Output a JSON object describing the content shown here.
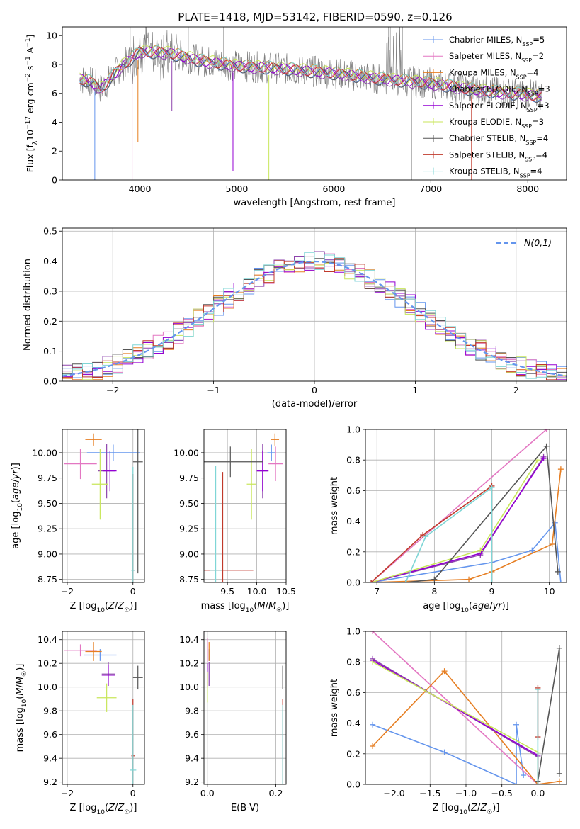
{
  "figure": {
    "title": "PLATE=1418, MJD=53142, FIBERID=0590, z=0.126"
  },
  "colors": {
    "series": [
      "#6495ED",
      "#E377C2",
      "#E67E22",
      "#8E44AD",
      "#9400D3",
      "#C8E65A",
      "#555555",
      "#C0392B",
      "#7FD6D6"
    ],
    "normal": "#6495ED",
    "grid": "#b0b0b0"
  },
  "chart_data": [
    {
      "type": "line",
      "xlabel": "wavelength [Angstrom, rest frame]",
      "ylabel": "Flux [f_λ 10^-17 erg cm^-2 s^-1 A^-1]",
      "xlim": [
        3200,
        8400
      ],
      "ylim": [
        0,
        10.6
      ],
      "xticks": [
        4000,
        5000,
        6000,
        7000,
        8000
      ],
      "yticks": [
        0,
        2,
        4,
        6,
        8,
        10
      ],
      "grid": false,
      "legend": "top-right",
      "series": [
        {
          "name": "Chabrier MILES, N_SSP=5"
        },
        {
          "name": "Salpeter MILES, N_SSP=2"
        },
        {
          "name": "Kroupa MILES, N_SSP=4"
        },
        {
          "name": "Chabrier ELODIE, N_SSP=3"
        },
        {
          "name": "Salpeter ELODIE, N_SSP=3"
        },
        {
          "name": "Kroupa ELODIE, N_SSP=3"
        },
        {
          "name": "Chabrier STELIB, N_SSP=4"
        },
        {
          "name": "Salpeter STELIB, N_SSP=4"
        },
        {
          "name": "Kroupa STELIB, N_SSP=4"
        }
      ],
      "continuum_x": [
        3380,
        3500,
        3600,
        3800,
        4000,
        4300,
        4600,
        5000,
        5500,
        6000,
        6500,
        7000,
        7500,
        8000,
        8150
      ],
      "continuum_y": [
        7.0,
        6.8,
        6.3,
        7.8,
        8.9,
        8.8,
        8.3,
        7.9,
        7.7,
        7.4,
        7.0,
        6.7,
        6.2,
        5.9,
        5.8
      ],
      "dips": [
        {
          "x": 3535,
          "y": 0.0
        },
        {
          "x": 3920,
          "y": 0.0
        },
        {
          "x": 3980,
          "y": 2.6
        },
        {
          "x": 4330,
          "y": 4.8
        },
        {
          "x": 4960,
          "y": 0.6
        },
        {
          "x": 5330,
          "y": 0.0
        },
        {
          "x": 6800,
          "y": 0.0
        },
        {
          "x": 7420,
          "y": 0.0
        }
      ]
    },
    {
      "type": "line",
      "xlabel": "(data-model)/error",
      "ylabel": "Normed distribution",
      "xlim": [
        -2.5,
        2.5
      ],
      "ylim": [
        0,
        0.51
      ],
      "xticks": [
        -2,
        -1,
        0,
        1,
        2
      ],
      "yticks": [
        0.0,
        0.1,
        0.2,
        0.3,
        0.4,
        0.5
      ],
      "grid": true,
      "legend": "top-right",
      "legend_label": "N(0,1)",
      "bin_width": 0.1
    },
    {
      "type": "scatter",
      "xlabel": "Z [log10(Z/Z_sun)]",
      "ylabel": "age [log10(age/yr)]",
      "xlim": [
        -2.15,
        0.35
      ],
      "ylim": [
        8.72,
        10.23
      ],
      "xticks": [
        -2,
        0
      ],
      "yticks": [
        8.75,
        9.0,
        9.25,
        9.5,
        9.75,
        10.0
      ],
      "grid": true,
      "points": [
        {
          "x": -0.6,
          "y": 10.0,
          "xerr": 0.8,
          "yerr": 0.08
        },
        {
          "x": -1.6,
          "y": 9.89,
          "xerr": 0.5,
          "yerr": 0.15
        },
        {
          "x": -1.2,
          "y": 10.13,
          "xerr": 0.25,
          "yerr": 0.06
        },
        {
          "x": -0.8,
          "y": 9.82,
          "xerr": 0.25,
          "yerr": 0.27
        },
        {
          "x": -0.7,
          "y": 9.82,
          "xerr": 0.2,
          "yerr": 0.2
        },
        {
          "x": -1.0,
          "y": 9.69,
          "xerr": 0.25,
          "yerr": 0.35
        },
        {
          "x": 0.15,
          "y": 9.91,
          "xerr": 0.15,
          "yerr": 1.1
        },
        {
          "x": 0.0,
          "y": 8.84,
          "xerr": 0.05,
          "yerr": 0.95
        },
        {
          "x": 0.0,
          "y": 8.84,
          "xerr": 0.05,
          "yerr": 1.02
        }
      ]
    },
    {
      "type": "scatter",
      "xlabel": "mass [log10(M/M_sun)]",
      "ylabel": "",
      "xlim": [
        9.1,
        10.5
      ],
      "ylim": [
        8.72,
        10.23
      ],
      "xticks": [
        9.5,
        10.0,
        10.5
      ],
      "yticks": [
        8.75,
        9.0,
        9.25,
        9.5,
        9.75,
        10.0
      ],
      "grid": true,
      "points": [
        {
          "x": 10.25,
          "y": 10.0,
          "xerr": 0.07,
          "yerr": 0.08
        },
        {
          "x": 10.32,
          "y": 9.89,
          "xerr": 0.12,
          "yerr": 0.17
        },
        {
          "x": 10.31,
          "y": 10.13,
          "xerr": 0.07,
          "yerr": 0.06
        },
        {
          "x": 10.1,
          "y": 9.82,
          "xerr": 0.1,
          "yerr": 0.27
        },
        {
          "x": 10.1,
          "y": 9.82,
          "xerr": 0.1,
          "yerr": 0.2
        },
        {
          "x": 9.91,
          "y": 9.69,
          "xerr": 0.08,
          "yerr": 0.35
        },
        {
          "x": 9.55,
          "y": 9.91,
          "xerr": 0.55,
          "yerr": 0.15
        },
        {
          "x": 9.42,
          "y": 8.84,
          "xerr": 0.52,
          "yerr": 0.97
        },
        {
          "x": 9.3,
          "y": 8.84,
          "xerr": 0.1,
          "yerr": 1.03
        }
      ]
    },
    {
      "type": "line",
      "xlabel": "age [log10(age/yr)]",
      "ylabel": "mass weight",
      "xlim": [
        6.8,
        10.3
      ],
      "ylim": [
        0,
        1.0
      ],
      "xticks": [
        7,
        8,
        9,
        10
      ],
      "yticks": [
        0.0,
        0.2,
        0.4,
        0.6,
        0.8,
        1.0
      ],
      "grid": true,
      "series": [
        {
          "x": [
            6.9,
            9.0,
            9.7,
            10.1,
            10.2
          ],
          "y": [
            0.0,
            0.13,
            0.21,
            0.39,
            0.0
          ]
        },
        {
          "x": [
            6.9,
            9.95
          ],
          "y": [
            0.0,
            1.0
          ]
        },
        {
          "x": [
            6.9,
            8.6,
            9.0,
            10.05,
            10.2
          ],
          "y": [
            0.0,
            0.02,
            0.07,
            0.25,
            0.74
          ]
        },
        {
          "x": [
            6.9,
            8.8,
            9.9
          ],
          "y": [
            0.0,
            0.18,
            0.82
          ]
        },
        {
          "x": [
            6.9,
            8.8,
            9.9
          ],
          "y": [
            0.0,
            0.19,
            0.81
          ]
        },
        {
          "x": [
            6.9,
            8.8,
            9.8
          ],
          "y": [
            0.0,
            0.21,
            0.8
          ]
        },
        {
          "x": [
            7.5,
            8.0,
            9.95,
            10.15
          ],
          "y": [
            0.0,
            0.02,
            0.89,
            0.07
          ]
        },
        {
          "x": [
            6.9,
            7.8,
            9.0,
            9.0
          ],
          "y": [
            0.0,
            0.31,
            0.63,
            0.0
          ]
        },
        {
          "x": [
            7.5,
            7.85,
            9.0,
            9.0
          ],
          "y": [
            0.0,
            0.3,
            0.62,
            0.0
          ]
        }
      ]
    },
    {
      "type": "scatter",
      "xlabel": "Z [log10(Z/Z_sun)]",
      "ylabel": "mass [log10(M/M_sun)]",
      "xlim": [
        -2.15,
        0.35
      ],
      "ylim": [
        9.18,
        10.47
      ],
      "xticks": [
        -2,
        0
      ],
      "yticks": [
        9.2,
        9.4,
        9.6,
        9.8,
        10.0,
        10.2,
        10.4
      ],
      "grid": true,
      "points": [
        {
          "x": -1.0,
          "y": 10.27,
          "xerr": 0.5,
          "yerr": 0.05
        },
        {
          "x": -1.6,
          "y": 10.31,
          "xerr": 0.5,
          "yerr": 0.05
        },
        {
          "x": -1.2,
          "y": 10.3,
          "xerr": 0.25,
          "yerr": 0.08
        },
        {
          "x": -0.75,
          "y": 10.11,
          "xerr": 0.2,
          "yerr": 0.1
        },
        {
          "x": -0.75,
          "y": 10.1,
          "xerr": 0.2,
          "yerr": 0.09
        },
        {
          "x": -0.8,
          "y": 9.91,
          "xerr": 0.3,
          "yerr": 0.12
        },
        {
          "x": 0.15,
          "y": 10.08,
          "xerr": 0.15,
          "yerr": 0.1
        },
        {
          "x": 0.0,
          "y": 9.42,
          "xerr": 0.05,
          "yerr": 0.48
        },
        {
          "x": 0.0,
          "y": 9.3,
          "xerr": 0.1,
          "yerr": 0.55
        }
      ]
    },
    {
      "type": "scatter",
      "xlabel": "E(B-V)",
      "ylabel": "",
      "xlim": [
        -0.01,
        0.23
      ],
      "ylim": [
        9.18,
        10.47
      ],
      "xticks": [
        0.0,
        0.2
      ],
      "yticks": [
        9.2,
        9.4,
        9.6,
        9.8,
        10.0,
        10.2,
        10.4
      ],
      "grid": true,
      "points": [
        {
          "x": 0.005,
          "y": 10.27,
          "yerr": 0.05
        },
        {
          "x": 0.0,
          "y": 10.31,
          "yerr": 0.1
        },
        {
          "x": 0.005,
          "y": 10.3,
          "yerr": 0.08
        },
        {
          "x": 0.005,
          "y": 10.11,
          "yerr": 0.1
        },
        {
          "x": 0.0,
          "y": 10.1,
          "yerr": 0.1
        },
        {
          "x": 0.0,
          "y": 10.0,
          "yerr": 0.13
        },
        {
          "x": 0.22,
          "y": 10.08,
          "yerr": 0.1
        },
        {
          "x": 0.22,
          "y": 9.42,
          "yerr": 0.48
        },
        {
          "x": 0.22,
          "y": 9.3,
          "yerr": 0.55
        }
      ]
    },
    {
      "type": "line",
      "xlabel": "Z [log10(Z/Z_sun)]",
      "ylabel": "mass weight",
      "xlim": [
        -2.4,
        0.4
      ],
      "ylim": [
        0,
        1.0
      ],
      "xticks": [
        -2.0,
        -1.5,
        -1.0,
        -0.5,
        0.0
      ],
      "yticks": [
        0.0,
        0.2,
        0.4,
        0.6,
        0.8,
        1.0
      ],
      "grid": true,
      "series": [
        {
          "x": [
            -2.3,
            -1.3,
            -0.3,
            -0.3,
            -0.2
          ],
          "y": [
            0.39,
            0.21,
            0.0,
            0.39,
            0.06
          ]
        },
        {
          "x": [
            -2.3,
            0.0
          ],
          "y": [
            1.0,
            0.0
          ]
        },
        {
          "x": [
            -2.3,
            -1.3,
            0.0,
            0.3
          ],
          "y": [
            0.25,
            0.74,
            0.0,
            0.02
          ]
        },
        {
          "x": [
            -2.3,
            0.0,
            0.0
          ],
          "y": [
            0.82,
            0.18,
            0.0
          ]
        },
        {
          "x": [
            -2.3,
            0.0,
            0.0
          ],
          "y": [
            0.81,
            0.19,
            0.0
          ]
        },
        {
          "x": [
            -2.3,
            0.0,
            0.0
          ],
          "y": [
            0.8,
            0.21,
            0.0
          ]
        },
        {
          "x": [
            0.0,
            0.3,
            0.3
          ],
          "y": [
            0.02,
            0.89,
            0.07
          ]
        },
        {
          "x": [
            0.0,
            0.0
          ],
          "y": [
            0.31,
            0.63
          ]
        },
        {
          "x": [
            0.0,
            0.0
          ],
          "y": [
            0.0,
            0.62
          ]
        }
      ]
    }
  ]
}
